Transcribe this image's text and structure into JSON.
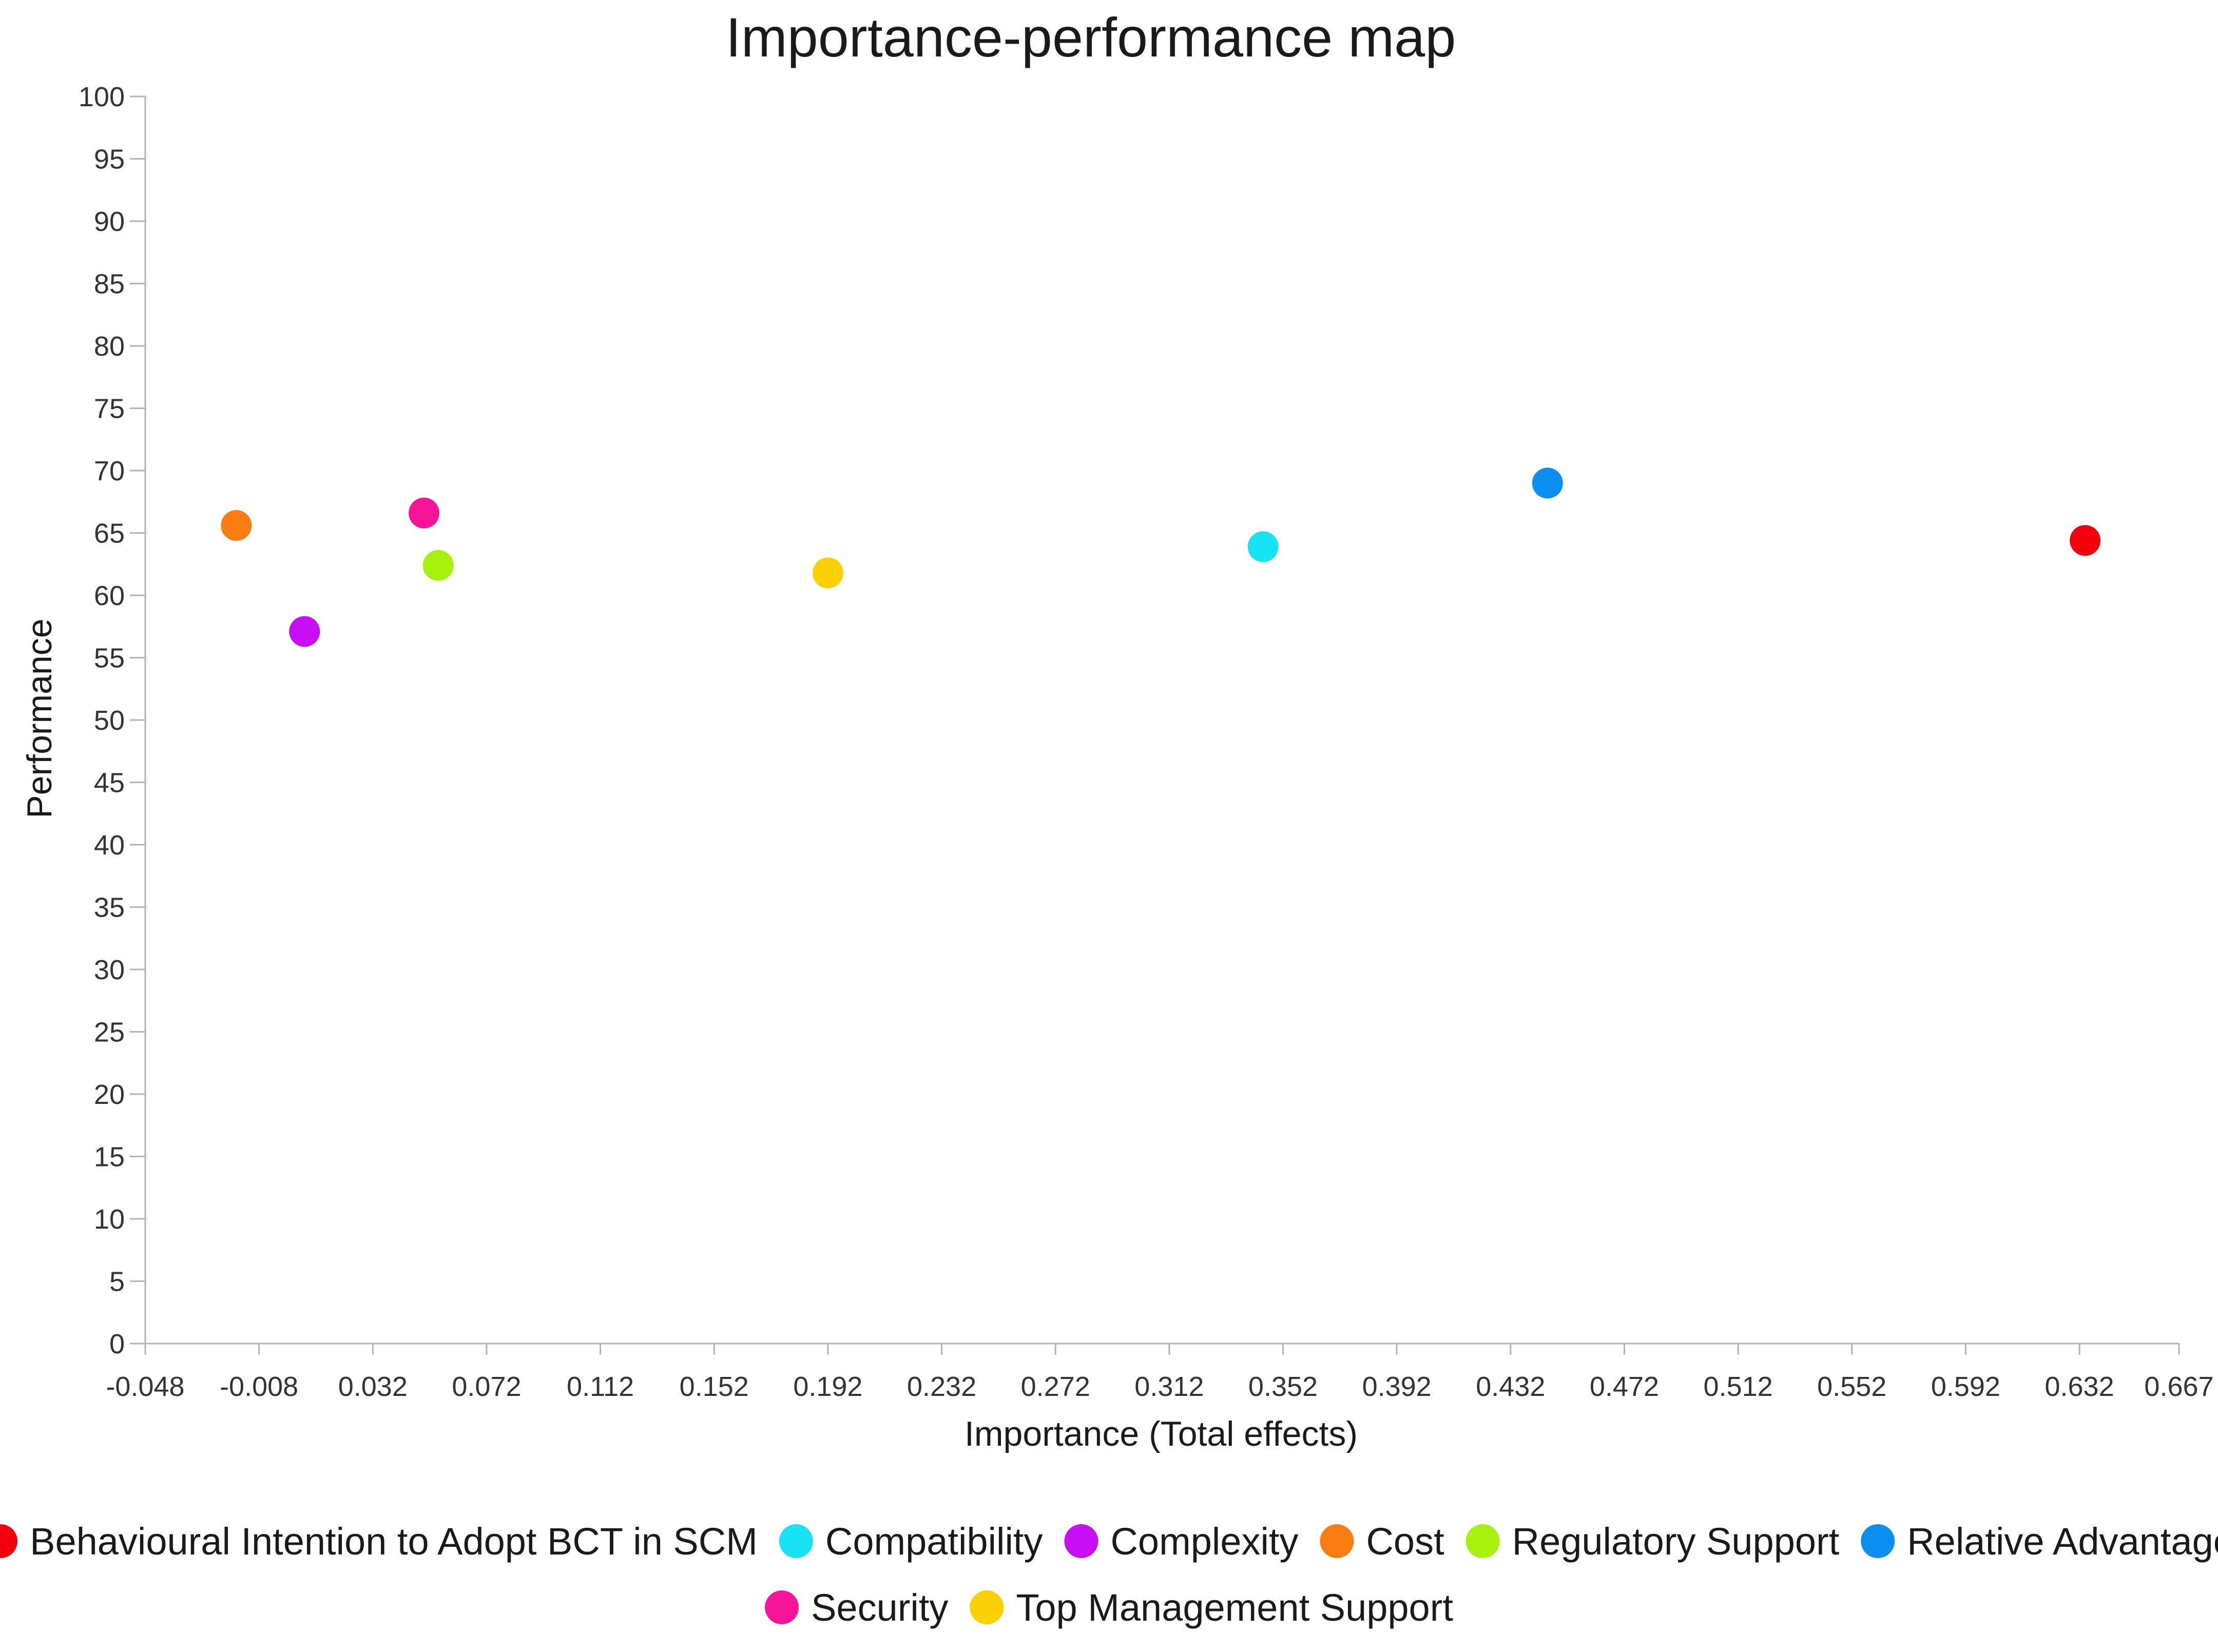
{
  "chart_data": {
    "type": "scatter",
    "title": "Importance-performance map",
    "xlabel": "Importance (Total effects)",
    "ylabel": "Performance",
    "xlim": [
      -0.048,
      0.667
    ],
    "ylim": [
      0,
      100
    ],
    "x_ticks": [
      "-0.048",
      "-0.008",
      "0.032",
      "0.072",
      "0.112",
      "0.152",
      "0.192",
      "0.232",
      "0.272",
      "0.312",
      "0.352",
      "0.392",
      "0.432",
      "0.472",
      "0.512",
      "0.552",
      "0.592",
      "0.632",
      "0.667"
    ],
    "y_ticks": [
      "0",
      "5",
      "10",
      "15",
      "20",
      "25",
      "30",
      "35",
      "40",
      "45",
      "50",
      "55",
      "60",
      "65",
      "70",
      "75",
      "80",
      "85",
      "90",
      "95",
      "100"
    ],
    "grid": false,
    "legend_position": "bottom",
    "series": [
      {
        "name": "Behavioural Intention to Adopt BCT in SCM",
        "color": "#f2000b",
        "x": 0.634,
        "y": 64.4
      },
      {
        "name": "Compatibility",
        "color": "#18e3f4",
        "x": 0.345,
        "y": 63.9
      },
      {
        "name": "Complexity",
        "color": "#c80ef4",
        "x": 0.008,
        "y": 57.1
      },
      {
        "name": "Cost",
        "color": "#fb7d12",
        "x": -0.016,
        "y": 65.6
      },
      {
        "name": "Regulatory Support",
        "color": "#a8f00e",
        "x": 0.055,
        "y": 62.4
      },
      {
        "name": "Relative Advantage",
        "color": "#0a8ef0",
        "x": 0.445,
        "y": 69.0
      },
      {
        "name": "Security",
        "color": "#f61498",
        "x": 0.05,
        "y": 66.6
      },
      {
        "name": "Top Management Support",
        "color": "#fbd004",
        "x": 0.192,
        "y": 61.8
      }
    ]
  }
}
